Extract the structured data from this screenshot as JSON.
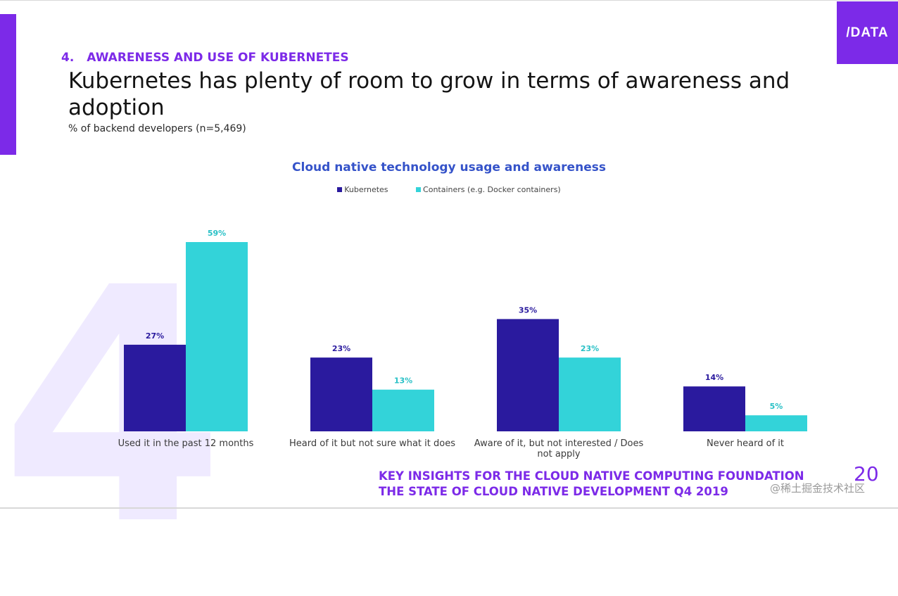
{
  "logo": {
    "text": "/DATA"
  },
  "section": {
    "number": "4.",
    "title": "AWARENESS AND USE OF KUBERNETES"
  },
  "headline": "Kubernetes has plenty of room to grow in terms of awareness and adoption",
  "subtitle": "% of backend developers (n=5,469)",
  "background_numeral": "4",
  "footer": {
    "line1": "KEY INSIGHTS FOR THE CLOUD NATIVE COMPUTING FOUNDATION",
    "line2": "THE STATE OF CLOUD NATIVE DEVELOPMENT Q4 2019",
    "page": "20"
  },
  "watermark": "@稀土掘金技术社区",
  "colors": {
    "accent": "#7c2ae8",
    "kubernetes": "#2a1a9e",
    "containers": "#33d3d9",
    "title": "#3553c9"
  },
  "chart_data": {
    "type": "bar",
    "title": "Cloud native technology usage and awareness",
    "categories": [
      "Used it in the past 12 months",
      "Heard of it but not sure what it does",
      "Aware of it, but not interested / Does not apply",
      "Never heard of it"
    ],
    "series": [
      {
        "name": "Kubernetes",
        "values": [
          27,
          23,
          35,
          14
        ],
        "labels": [
          "27%",
          "23%",
          "35%",
          "14%"
        ],
        "color": "#2a1a9e"
      },
      {
        "name": "Containers (e.g. Docker containers)",
        "values": [
          59,
          13,
          23,
          5
        ],
        "labels": [
          "59%",
          "13%",
          "23%",
          "5%"
        ],
        "color": "#33d3d9"
      }
    ],
    "ylim": [
      0,
      59
    ],
    "grid": false,
    "legend": "top-center"
  }
}
